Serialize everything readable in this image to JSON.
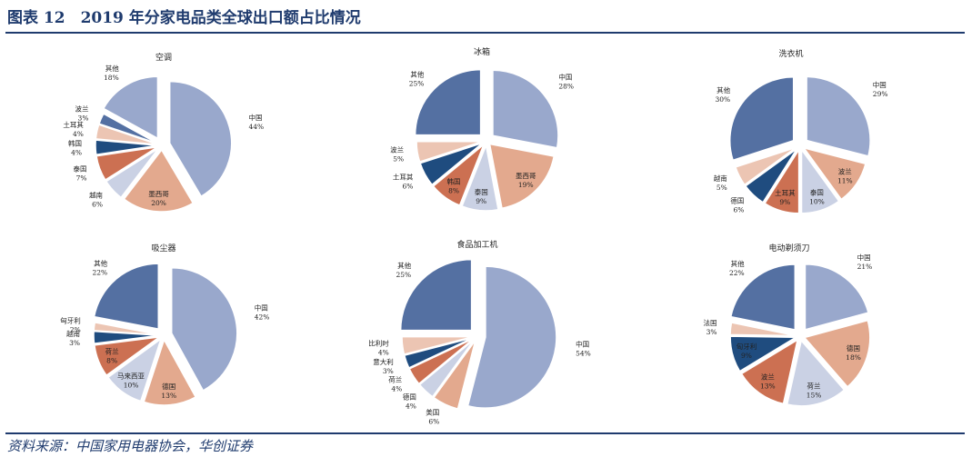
{
  "figure": {
    "title": "图表 12　2019 年分家电品类全球出口额占比情况",
    "source": "资料来源：中国家用电器协会，华创证券"
  },
  "palette": {
    "slice_colors": [
      "#99a8cc",
      "#e3a98e",
      "#cad1e4",
      "#cc7052",
      "#1f4c7f",
      "#ecc5b3",
      "#5470a2"
    ],
    "title_color": "#1f3b6e"
  },
  "chart_data": [
    {
      "type": "pie",
      "title": "空调",
      "slices": [
        {
          "name": "中国",
          "value": 44
        },
        {
          "name": "墨西哥",
          "value": 20
        },
        {
          "name": "越南",
          "value": 6
        },
        {
          "name": "泰国",
          "value": 7
        },
        {
          "name": "韩国",
          "value": 4
        },
        {
          "name": "土耳其",
          "value": 4
        },
        {
          "name": "波兰",
          "value": 3
        },
        {
          "name": "其他",
          "value": 18
        }
      ]
    },
    {
      "type": "pie",
      "title": "冰箱",
      "slices": [
        {
          "name": "中国",
          "value": 28
        },
        {
          "name": "墨西哥",
          "value": 19
        },
        {
          "name": "泰国",
          "value": 9
        },
        {
          "name": "韩国",
          "value": 8
        },
        {
          "name": "土耳其",
          "value": 6
        },
        {
          "name": "波兰",
          "value": 5
        },
        {
          "name": "其他",
          "value": 25
        }
      ]
    },
    {
      "type": "pie",
      "title": "洗衣机",
      "slices": [
        {
          "name": "中国",
          "value": 29
        },
        {
          "name": "波兰",
          "value": 11
        },
        {
          "name": "泰国",
          "value": 10
        },
        {
          "name": "土耳其",
          "value": 9
        },
        {
          "name": "德国",
          "value": 6
        },
        {
          "name": "越南",
          "value": 5
        },
        {
          "name": "其他",
          "value": 30
        }
      ]
    },
    {
      "type": "pie",
      "title": "吸尘器",
      "slices": [
        {
          "name": "中国",
          "value": 42
        },
        {
          "name": "德国",
          "value": 13
        },
        {
          "name": "马来西亚",
          "value": 10
        },
        {
          "name": "荷兰",
          "value": 8
        },
        {
          "name": "越南",
          "value": 3
        },
        {
          "name": "匈牙利",
          "value": 2
        },
        {
          "name": "其他",
          "value": 22
        }
      ]
    },
    {
      "type": "pie",
      "title": "食品加工机",
      "slices": [
        {
          "name": "中国",
          "value": 54
        },
        {
          "name": "美国",
          "value": 6
        },
        {
          "name": "德国",
          "value": 4
        },
        {
          "name": "荷兰",
          "value": 4
        },
        {
          "name": "意大利",
          "value": 3
        },
        {
          "name": "比利时",
          "value": 4
        },
        {
          "name": "其他",
          "value": 25
        }
      ]
    },
    {
      "type": "pie",
      "title": "电动剃须刀",
      "slices": [
        {
          "name": "中国",
          "value": 21
        },
        {
          "name": "德国",
          "value": 18
        },
        {
          "name": "荷兰",
          "value": 15
        },
        {
          "name": "波兰",
          "value": 13
        },
        {
          "name": "匈牙利",
          "value": 9
        },
        {
          "name": "法国",
          "value": 3
        },
        {
          "name": "其他",
          "value": 22
        }
      ]
    }
  ]
}
